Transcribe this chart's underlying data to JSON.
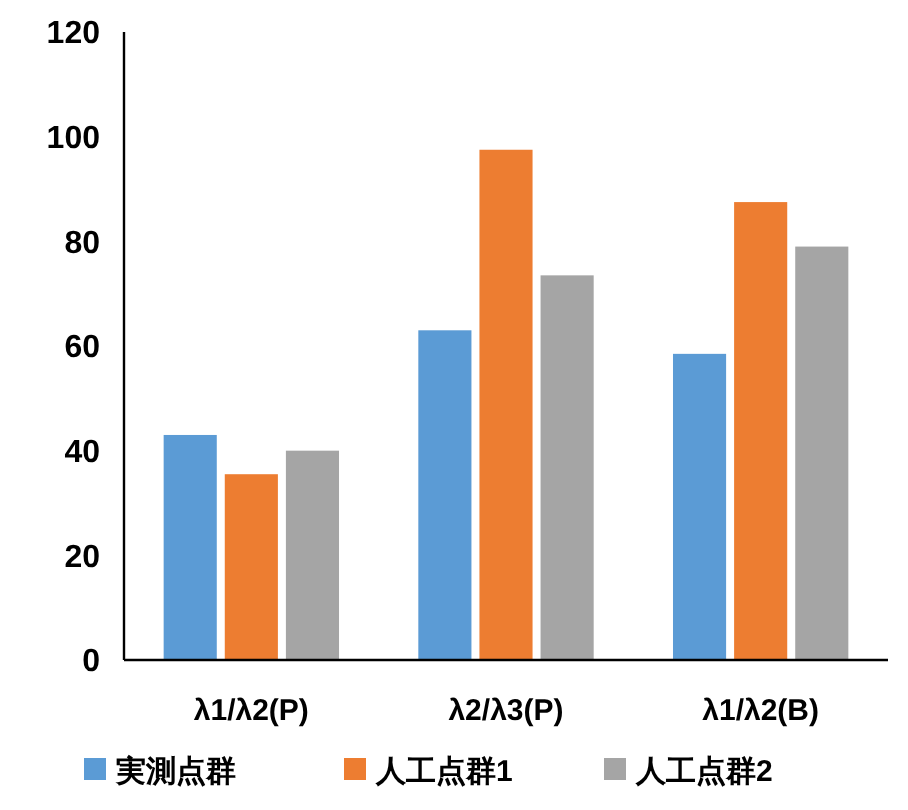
{
  "chart_data": {
    "type": "bar",
    "categories": [
      "λ1/λ2(P)",
      "λ2/λ3(P)",
      "λ1/λ2(B)"
    ],
    "series": [
      {
        "name": "実測点群",
        "color": "#5b9bd5",
        "values": [
          43,
          63,
          58.5
        ]
      },
      {
        "name": "人工点群1",
        "color": "#ed7d31",
        "values": [
          35.5,
          97.5,
          87.5
        ]
      },
      {
        "name": "人工点群2",
        "color": "#a5a5a5",
        "values": [
          40,
          73.5,
          79
        ]
      }
    ],
    "ylim": [
      0,
      120
    ],
    "yticks": [
      0,
      20,
      40,
      60,
      80,
      100,
      120
    ],
    "grid": false,
    "legend": "bottom"
  }
}
